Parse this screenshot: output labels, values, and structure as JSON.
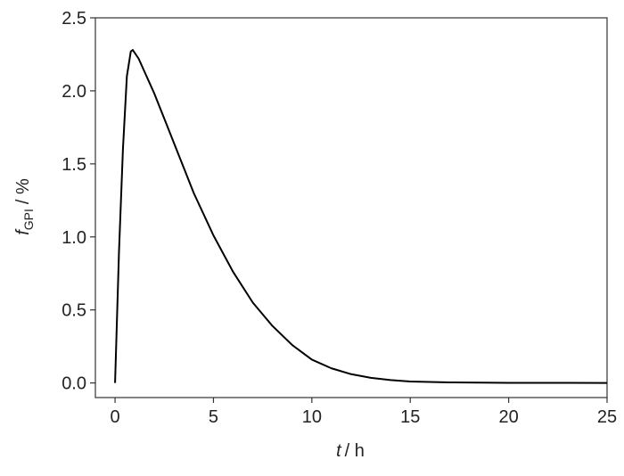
{
  "chart_data": {
    "type": "line",
    "xlabel": {
      "symbol": "t",
      "unit": "/ h"
    },
    "ylabel": {
      "symbol": "f",
      "subscript": "GPI",
      "unit": "/ %"
    },
    "x": [
      0,
      0.2,
      0.4,
      0.6,
      0.8,
      0.9,
      1.2,
      1.5,
      2,
      2.5,
      3,
      3.5,
      4,
      5,
      6,
      7,
      8,
      9,
      10,
      11,
      12,
      13,
      14,
      15,
      17,
      20,
      25
    ],
    "series": [
      {
        "color": "#000000",
        "values": [
          0,
          0.9,
          1.6,
          2.1,
          2.27,
          2.28,
          2.22,
          2.13,
          1.98,
          1.81,
          1.64,
          1.47,
          1.3,
          1.01,
          0.76,
          0.55,
          0.39,
          0.26,
          0.16,
          0.1,
          0.06,
          0.035,
          0.02,
          0.01,
          0.004,
          0.001,
          0
        ]
      }
    ],
    "xlim": [
      -1,
      25
    ],
    "xticks": [
      0,
      5,
      10,
      15,
      20,
      25
    ],
    "ylim": [
      -0.1,
      2.5
    ],
    "yticks": [
      {
        "value": 0,
        "label": "0.0"
      },
      0.5,
      {
        "value": 1,
        "label": "1.0"
      },
      1.5,
      {
        "value": 2,
        "label": "2.0"
      },
      2.5
    ],
    "grid": false
  }
}
